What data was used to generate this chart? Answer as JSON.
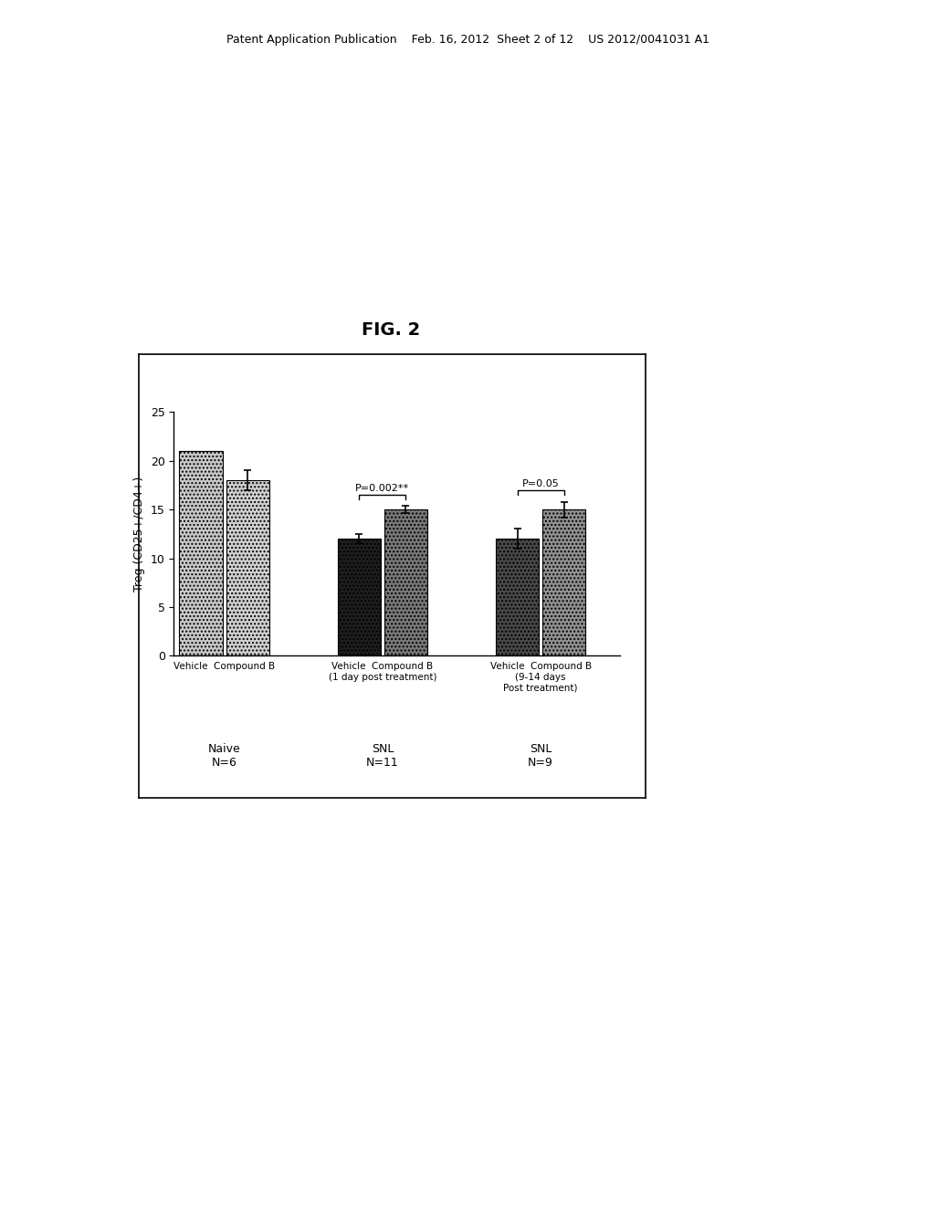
{
  "title": "FIG. 2",
  "ylabel": "Treg (CD25+/CD4+)",
  "ylim": [
    0,
    25
  ],
  "yticks": [
    0,
    5,
    10,
    15,
    20,
    25
  ],
  "bar_values": [
    21.0,
    18.0,
    12.0,
    15.0,
    12.0,
    15.0
  ],
  "bar_errors": [
    0.0,
    1.0,
    0.5,
    0.4,
    1.0,
    0.8
  ],
  "group_labels": [
    "Vehicle  Compound B",
    "Vehicle  Compound B\n(1 day post treatment)",
    "Vehicle  Compound B\n(9-14 days\nPost treatment)"
  ],
  "group_bottom_labels": [
    "Naive\nN=6",
    "SNL\nN=11",
    "SNL\nN=9"
  ],
  "sig_labels": [
    "P=0.002**",
    "P=0.05"
  ],
  "header_text": "Patent Application Publication    Feb. 16, 2012  Sheet 2 of 12    US 2012/0041031 A1",
  "background_color": "#ffffff",
  "bar_facecolors": [
    "#c8c8c8",
    "#d0d0d0",
    "#1e1e1e",
    "#787878",
    "#484848",
    "#909090"
  ],
  "group_centers": [
    1.0,
    3.2,
    5.4
  ],
  "bar_width": 0.6,
  "xlim": [
    0.3,
    6.5
  ]
}
